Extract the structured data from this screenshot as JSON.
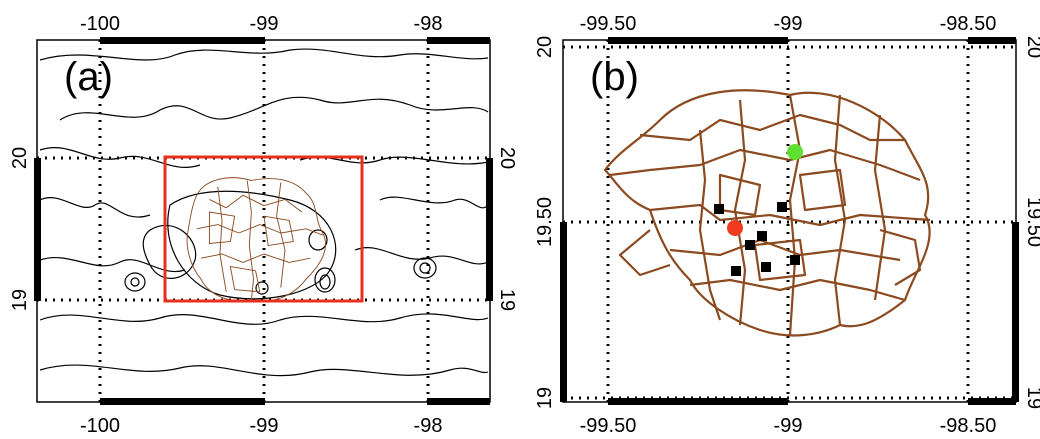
{
  "panel_a": {
    "label": "(a)",
    "x_ticks": [
      "-100",
      "-99",
      "-98"
    ],
    "y_ticks": [
      "20",
      "19"
    ],
    "box_color": "#e8301e"
  },
  "panel_b": {
    "label": "(b)",
    "x_ticks": [
      "-99.50",
      "-99",
      "-98.50"
    ],
    "y_ticks": [
      "20",
      "19.50",
      "19"
    ],
    "markers": {
      "red_point_color": "#f23a1e",
      "green_point_color": "#5ee033",
      "square_color": "#000000",
      "square_count": 7
    }
  },
  "colors": {
    "boundary": "#8b4a1f",
    "contour": "#000000",
    "grid": "#000000"
  }
}
